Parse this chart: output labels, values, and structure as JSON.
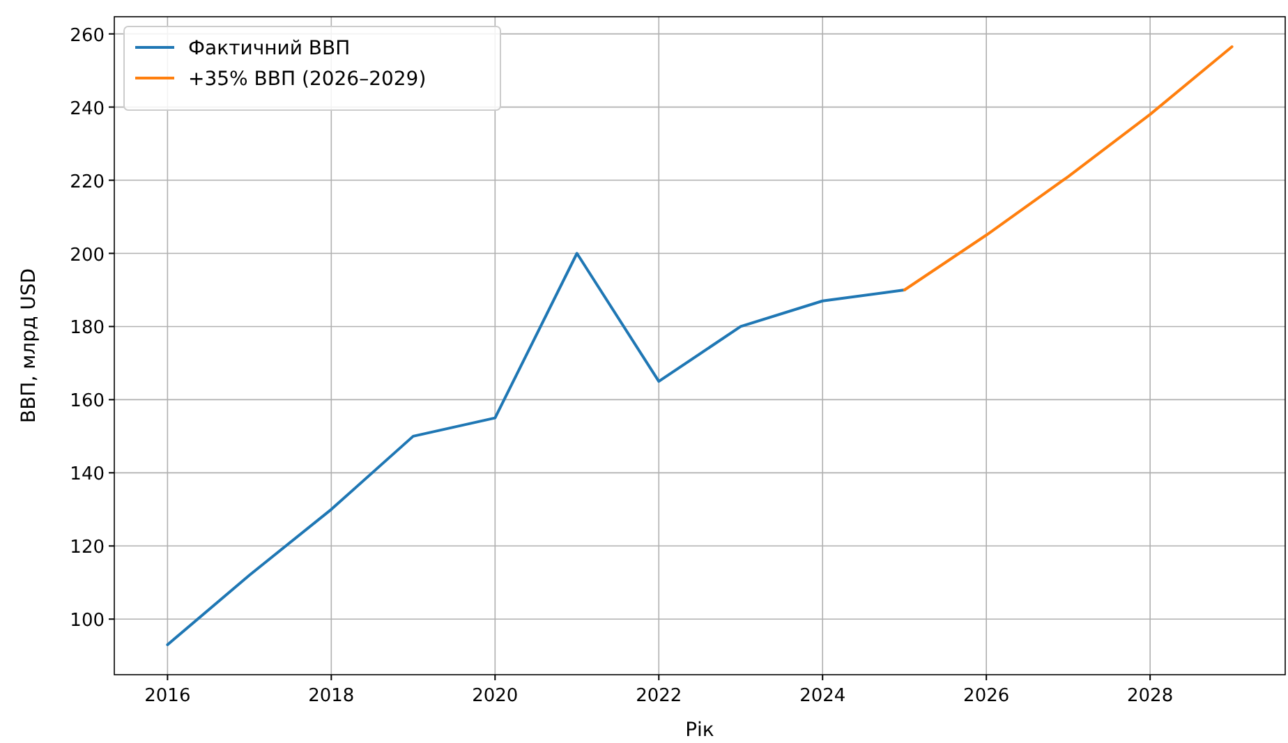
{
  "chart_data": {
    "type": "line",
    "xlabel": "Рік",
    "ylabel": "ВВП, млрд USD",
    "xlim": [
      2015.35,
      2029.65
    ],
    "xticks": [
      2016,
      2018,
      2020,
      2022,
      2024,
      2026,
      2028
    ],
    "ylim": [
      84.8,
      264.7
    ],
    "yticks": [
      100,
      120,
      140,
      160,
      180,
      200,
      220,
      240,
      260
    ],
    "grid": true,
    "legend": "top left",
    "series": [
      {
        "name": "Фактичний ВВП",
        "color": "#1f77b4",
        "x": [
          2016,
          2017,
          2018,
          2019,
          2020,
          2021,
          2022,
          2023,
          2024,
          2025
        ],
        "values": [
          93,
          112,
          130,
          150,
          155,
          200,
          165,
          180,
          187,
          190
        ]
      },
      {
        "name": "+35% ВВП (2026–2029)",
        "color": "#ff7f0e",
        "x": [
          2025,
          2026,
          2027,
          2028,
          2029
        ],
        "values": [
          190,
          205,
          221,
          238,
          256.5
        ]
      }
    ]
  }
}
